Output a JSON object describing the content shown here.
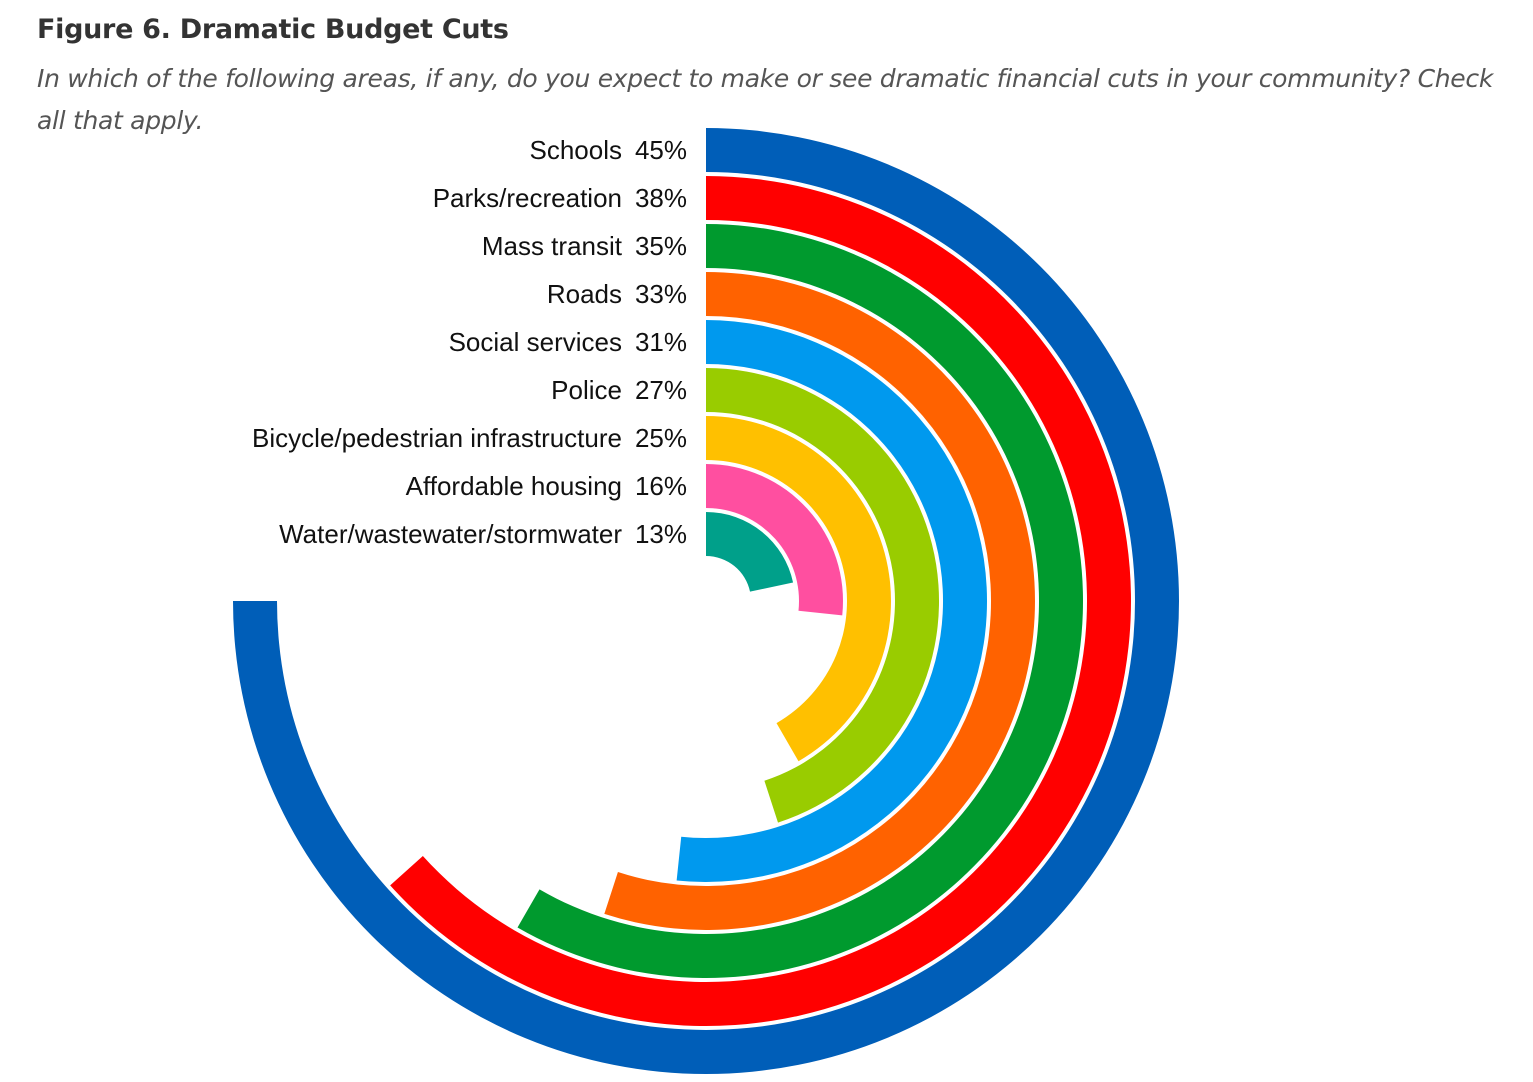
{
  "title": "Figure 6. Dramatic Budget Cuts",
  "subtitle": "In which of the following areas, if any, do you expect to make or see dramatic financial cuts in your community? Check all that apply.",
  "chart_data": {
    "type": "radial-bar",
    "title": "Figure 6. Dramatic Budget Cuts",
    "subtitle": "In which of the following areas, if any, do you expect to make or see dramatic financial cuts in your community? Check all that apply.",
    "unit": "%",
    "categories": [
      "Schools",
      "Parks/recreation",
      "Mass transit",
      "Roads",
      "Social services",
      "Police",
      "Bicycle/pedestrian infrastructure",
      "Affordable housing",
      "Water/wastewater/stormwater"
    ],
    "values": [
      45,
      38,
      35,
      33,
      31,
      27,
      25,
      16,
      13
    ],
    "value_labels": [
      "45%",
      "38%",
      "35%",
      "33%",
      "31%",
      "27%",
      "25%",
      "16%",
      "13%"
    ],
    "colors": [
      "#005EB8",
      "#FF0000",
      "#009A2E",
      "#FF6200",
      "#0099EE",
      "#99CC00",
      "#FFC000",
      "#FF4FA0",
      "#00A08A"
    ],
    "max_value": 60,
    "sweep": "clockwise from top"
  }
}
